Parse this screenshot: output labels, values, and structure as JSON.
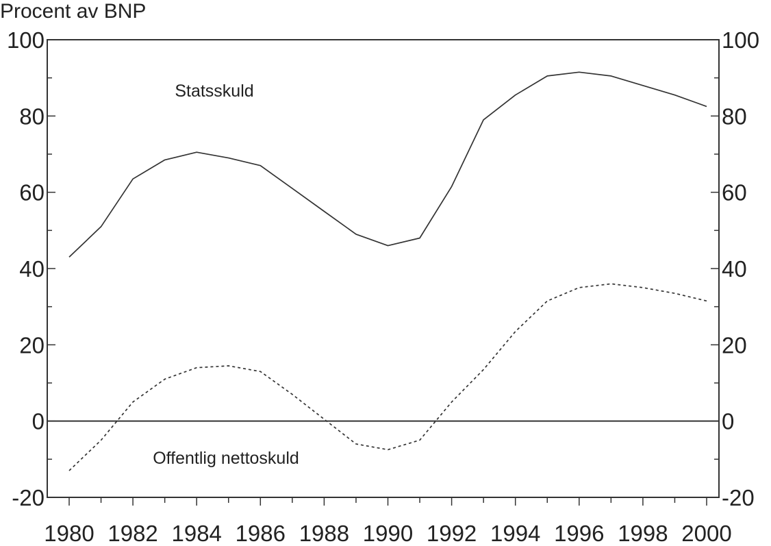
{
  "chart_data": {
    "type": "line",
    "title": "",
    "ylabel": "Procent av BNP",
    "xlabel": "",
    "xlim": [
      1980,
      2000
    ],
    "ylim": [
      -20,
      100
    ],
    "x_ticks": [
      1980,
      1981,
      1982,
      1983,
      1984,
      1985,
      1986,
      1987,
      1988,
      1989,
      1990,
      1991,
      1992,
      1993,
      1994,
      1995,
      1996,
      1997,
      1998,
      1999,
      2000
    ],
    "x_tick_labels": [
      "1980",
      "1982",
      "1984",
      "1986",
      "1988",
      "1990",
      "1992",
      "1994",
      "1996",
      "1998",
      "2000"
    ],
    "y_ticks": [
      -20,
      0,
      20,
      40,
      60,
      80,
      100
    ],
    "y_tick_labels": [
      "-20",
      "0",
      "20",
      "40",
      "60",
      "80",
      "100"
    ],
    "right_axis_mirrored": true,
    "zero_line": true,
    "grid": false,
    "legend": "none",
    "series": [
      {
        "name": "Statsskuld",
        "style": "solid",
        "color": "#333333",
        "x": [
          1980,
          1981,
          1982,
          1983,
          1984,
          1985,
          1986,
          1987,
          1988,
          1989,
          1990,
          1991,
          1992,
          1993,
          1994,
          1995,
          1996,
          1997,
          1998,
          1999,
          2000
        ],
        "values": [
          43,
          51,
          63.5,
          68.5,
          70.5,
          69,
          67,
          61,
          55,
          49,
          46,
          48,
          61.5,
          79,
          85.5,
          90.5,
          91.5,
          90.5,
          88,
          85.5,
          82.5
        ]
      },
      {
        "name": "Offentlig nettoskuld",
        "style": "dotted",
        "color": "#333333",
        "x": [
          1980,
          1981,
          1982,
          1983,
          1984,
          1985,
          1986,
          1987,
          1988,
          1989,
          1990,
          1991,
          1992,
          1993,
          1994,
          1995,
          1996,
          1997,
          1998,
          1999,
          2000
        ],
        "values": [
          -13,
          -5,
          5,
          11,
          14,
          14.5,
          13,
          7,
          0.5,
          -6,
          -7.5,
          -5,
          5,
          13.5,
          23.5,
          31.5,
          35,
          36,
          35,
          33.5,
          31.5
        ]
      }
    ]
  }
}
